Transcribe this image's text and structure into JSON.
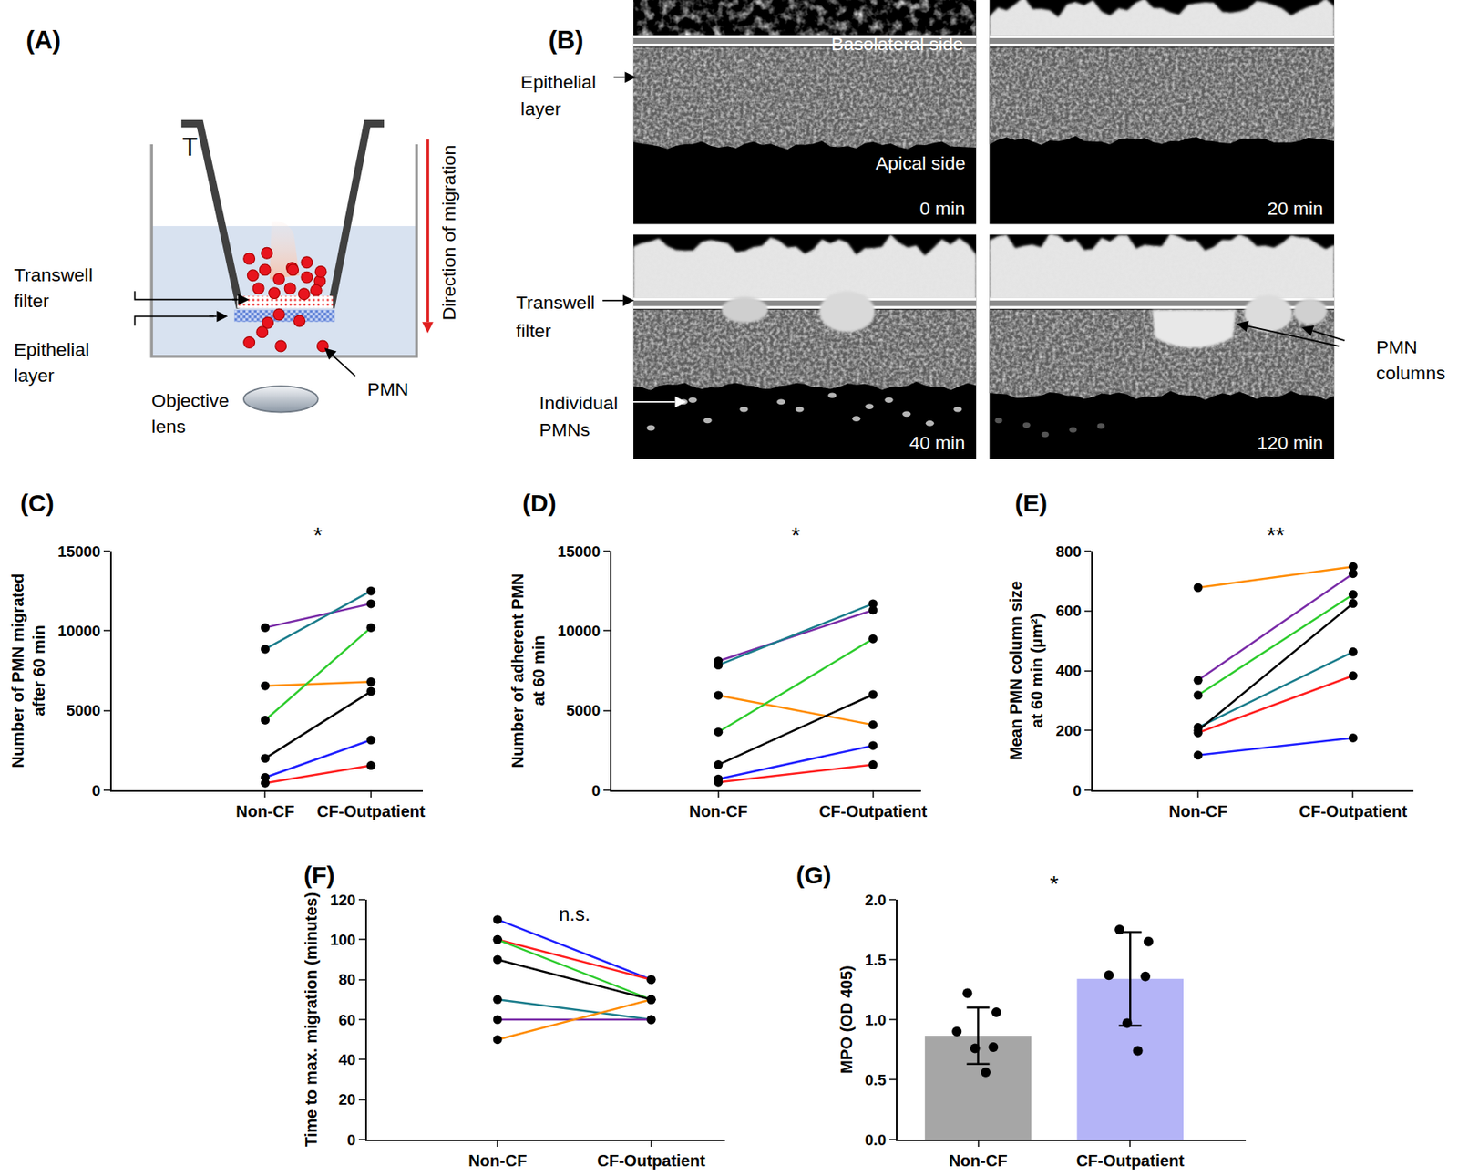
{
  "panel_a": {
    "label": "(A)",
    "insert_label": "T",
    "filter_label": [
      "Transwell",
      "filter"
    ],
    "epithelium_label": [
      "Epithelial",
      "layer"
    ],
    "direction_label": "Direction of migration",
    "lens_label": [
      "Objective",
      "lens"
    ],
    "cell_label": "PMN"
  },
  "panel_b": {
    "label": "(B)",
    "times": [
      "0 min",
      "20 min",
      "40 min",
      "120 min"
    ],
    "basolateral_label": "Basolateral side",
    "apical_label": "Apical side",
    "epithelium_label": [
      "Epithelial",
      "layer"
    ],
    "filter_label": [
      "Transwell",
      "filter"
    ],
    "individual_label": [
      "Individual",
      "PMNs"
    ],
    "columns_label": [
      "PMN",
      "columns"
    ]
  },
  "chart_data": [
    {
      "type": "line",
      "title": "(C)",
      "annotation": "*",
      "categories": [
        "Non-CF",
        "CF-Outpatient"
      ],
      "ylabel": [
        "Number of PMN migrated",
        "after 60 min"
      ],
      "ylim": [
        0,
        15000
      ],
      "yticks": [
        0,
        5000,
        10000,
        15000
      ],
      "grid": false,
      "marker": "circle",
      "series": [
        {
          "color": "#7a2ca8",
          "values": [
            10200,
            11700
          ]
        },
        {
          "color": "#1b7d8c",
          "values": [
            8850,
            12500
          ]
        },
        {
          "color": "#ff8c00",
          "values": [
            6550,
            6800
          ]
        },
        {
          "color": "#2ecc2e",
          "values": [
            4400,
            10200
          ]
        },
        {
          "color": "#000000",
          "values": [
            2000,
            6200
          ]
        },
        {
          "color": "#1f1fff",
          "values": [
            800,
            3150
          ]
        },
        {
          "color": "#ff1f1f",
          "values": [
            450,
            1550
          ]
        }
      ]
    },
    {
      "type": "line",
      "title": "(D)",
      "annotation": "*",
      "categories": [
        "Non-CF",
        "CF-Outpatient"
      ],
      "ylabel": [
        "Number of adherent PMN",
        "at 60 min"
      ],
      "ylim": [
        0,
        15000
      ],
      "yticks": [
        0,
        5000,
        10000,
        15000
      ],
      "grid": false,
      "marker": "circle",
      "series": [
        {
          "color": "#7a2ca8",
          "values": [
            8100,
            11300
          ]
        },
        {
          "color": "#1b7d8c",
          "values": [
            7850,
            11700
          ]
        },
        {
          "color": "#ff8c00",
          "values": [
            5950,
            4100
          ]
        },
        {
          "color": "#2ecc2e",
          "values": [
            3650,
            9500
          ]
        },
        {
          "color": "#000000",
          "values": [
            1600,
            6000
          ]
        },
        {
          "color": "#1f1fff",
          "values": [
            700,
            2800
          ]
        },
        {
          "color": "#ff1f1f",
          "values": [
            500,
            1600
          ]
        }
      ]
    },
    {
      "type": "line",
      "title": "(E)",
      "annotation": "**",
      "categories": [
        "Non-CF",
        "CF-Outpatient"
      ],
      "ylabel": [
        "Mean PMN column size",
        "at 60 min (µm²)"
      ],
      "ylim": [
        0,
        800
      ],
      "yticks": [
        0,
        200,
        400,
        600,
        800
      ],
      "grid": false,
      "marker": "circle",
      "series": [
        {
          "color": "#ff8c00",
          "values": [
            678,
            748
          ]
        },
        {
          "color": "#7a2ca8",
          "values": [
            368,
            725
          ]
        },
        {
          "color": "#2ecc2e",
          "values": [
            318,
            655
          ]
        },
        {
          "color": "#1b7d8c",
          "values": [
            210,
            463
          ]
        },
        {
          "color": "#000000",
          "values": [
            200,
            625
          ]
        },
        {
          "color": "#ff1f1f",
          "values": [
            192,
            383
          ]
        },
        {
          "color": "#1f1fff",
          "values": [
            117,
            175
          ]
        }
      ]
    },
    {
      "type": "line",
      "title": "(F)",
      "annotation": "n.s.",
      "categories": [
        "Non-CF",
        "CF-Outpatient"
      ],
      "ylabel": "Time to max. migration (minutes)",
      "ylim": [
        0,
        120
      ],
      "yticks": [
        0,
        20,
        40,
        60,
        80,
        100,
        120
      ],
      "grid": false,
      "marker": "circle",
      "series": [
        {
          "color": "#1f1fff",
          "values": [
            110,
            80
          ]
        },
        {
          "color": "#ff1f1f",
          "values": [
            100,
            80
          ]
        },
        {
          "color": "#2ecc2e",
          "values": [
            100,
            70
          ]
        },
        {
          "color": "#000000",
          "values": [
            90,
            70
          ]
        },
        {
          "color": "#1b7d8c",
          "values": [
            70,
            60
          ]
        },
        {
          "color": "#7a2ca8",
          "values": [
            60,
            60
          ]
        },
        {
          "color": "#ff8c00",
          "values": [
            50,
            70
          ]
        }
      ]
    },
    {
      "type": "bar",
      "title": "(G)",
      "annotation": "*",
      "categories": [
        "Non-CF",
        "CF-Outpatient"
      ],
      "values": [
        0.865,
        1.34
      ],
      "error": [
        0.235,
        0.39
      ],
      "points": [
        [
          1.22,
          1.06,
          0.9,
          0.77,
          0.76,
          0.56
        ],
        [
          1.75,
          1.65,
          1.37,
          1.36,
          0.97,
          0.74
        ]
      ],
      "colors": [
        "#a6a6a6",
        "#b4b4f7"
      ],
      "ylabel": "MPO (OD 405)",
      "ylim": [
        0,
        2
      ],
      "yticks": [
        {
          "value": 0,
          "label": "0.0"
        },
        0.5,
        {
          "value": 1,
          "label": "1.0"
        },
        1.5,
        {
          "value": 2,
          "label": "2.0"
        }
      ],
      "grid": false,
      "marker": "circle"
    }
  ]
}
